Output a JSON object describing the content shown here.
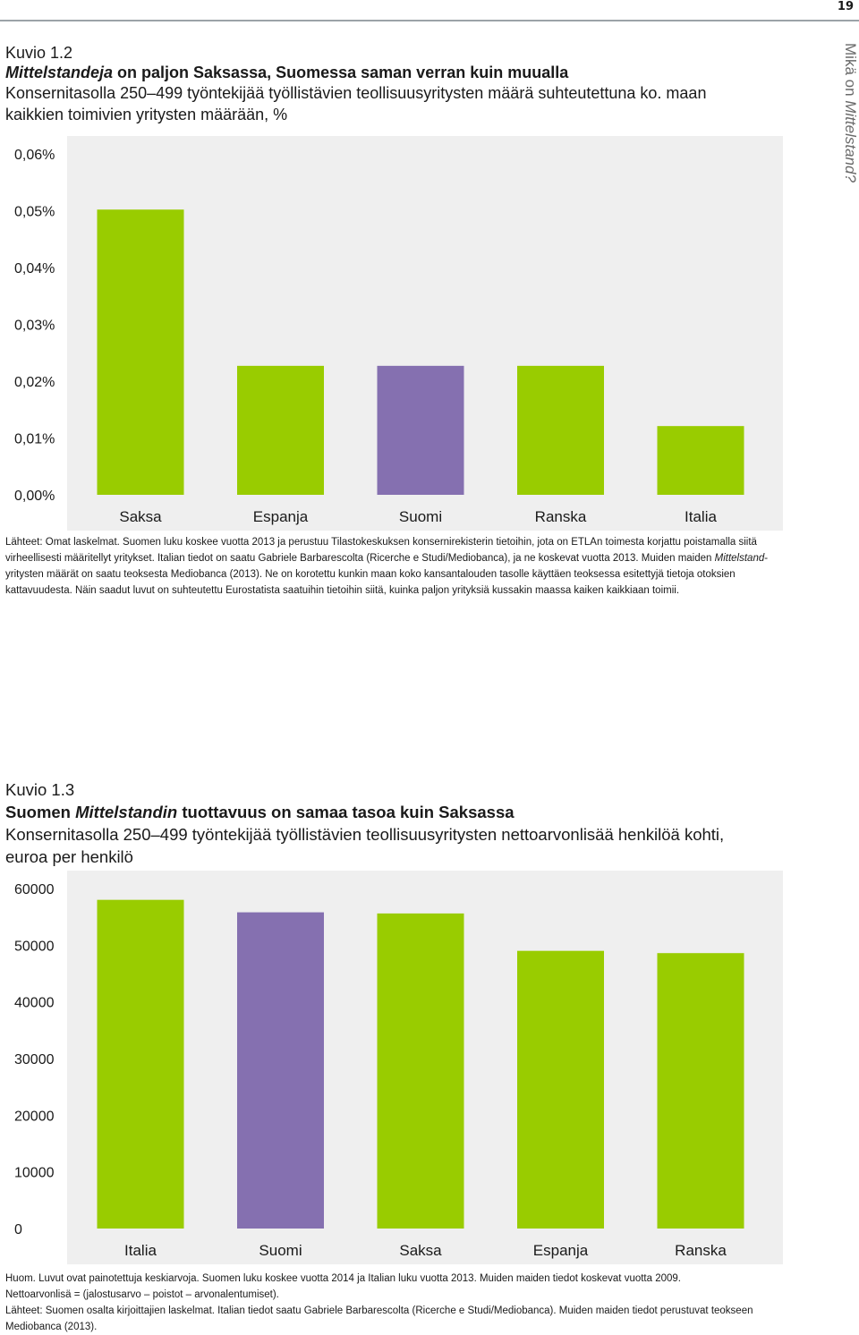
{
  "page_number": "19",
  "side_title_prefix": "Mikä on ",
  "side_title_italic": "Mittelstand?",
  "figure1": {
    "number": "Kuvio 1.2",
    "title_italic": "Mittelstandeja",
    "title_rest": " on paljon Saksassa, Suomessa saman verran kuin muualla",
    "subtitle": "Konsernitasolla 250–499 työntekijää työllistävien teollisuusyritysten määrä suhteutettuna ko. maan kaikkien toimivien yritysten määrään, %",
    "notes": [
      "Lähteet: Omat laskelmat. Suomen luku koskee vuotta 2013 ja perustuu Tilastokeskuksen konsernirekisterin tietoihin, jota on ETLAn toimesta korjattu poistamalla siitä virheellisesti määritellyt yritykset. Italian tiedot on saatu Gabriele Barbarescolta (Ricerche e Studi/Mediobanca), ja ne koskevat vuotta 2013. Muiden maiden ",
      "Mittelstand",
      "-yritysten määrät on saatu teoksesta Mediobanca (2013). Ne on korotettu kunkin maan koko kansantalouden tasolle käyttäen teoksessa esitettyjä tietoja otoksien kattavuudesta. Näin saadut luvut on suhteutettu Eurostatista saatuihin tietoihin siitä, kuinka paljon yrityksiä kussakin maassa kaiken kaikkiaan toimii."
    ]
  },
  "figure2": {
    "number": "Kuvio 1.3",
    "title_pre": "Suomen ",
    "title_italic": "Mittelstandin",
    "title_rest": " tuottavuus on samaa tasoa kuin Saksassa",
    "subtitle": "Konsernitasolla 250–499 työntekijää työllistävien teollisuusyritysten nettoarvonlisää henkilöä kohti, euroa per henkilö",
    "notes": [
      "Huom. Luvut ovat painotettuja keskiarvoja. Suomen luku koskee vuotta 2014 ja Italian luku vuotta 2013. Muiden maiden tiedot koskevat vuotta 2009.",
      "Nettoarvonlisä = (jalostusarvo – poistot – arvonalentumiset).",
      "Lähteet: Suomen osalta kirjoittajien laskelmat. Italian tiedot saatu Gabriele Barbarescolta (Ricerche e Studi/Mediobanca). Muiden maiden tiedot perustuvat teokseen Mediobanca (2013)."
    ]
  },
  "chart_data": [
    {
      "type": "bar",
      "categories": [
        "Saksa",
        "Espanja",
        "Suomi",
        "Ranska",
        "Italia"
      ],
      "values": [
        0.0502,
        0.0227,
        0.0227,
        0.0227,
        0.0121
      ],
      "yticks": [
        "0,00%",
        "0,01%",
        "0,02%",
        "0,03%",
        "0,04%",
        "0,05%",
        "0,06%"
      ],
      "ylim": [
        0,
        0.06
      ],
      "bar_colors": [
        "#99cc00",
        "#99cc00",
        "#8570b0",
        "#99cc00",
        "#99cc00"
      ],
      "background": "#efefef",
      "grid": false
    },
    {
      "type": "bar",
      "categories": [
        "Italia",
        "Suomi",
        "Saksa",
        "Espanja",
        "Ranska"
      ],
      "values": [
        58000,
        55800,
        55600,
        49000,
        48600
      ],
      "yticks": [
        "0",
        "10000",
        "20000",
        "30000",
        "40000",
        "50000",
        "60000"
      ],
      "ylim": [
        0,
        60000
      ],
      "bar_colors": [
        "#99cc00",
        "#8570b0",
        "#99cc00",
        "#99cc00",
        "#99cc00"
      ],
      "background": "#efefef",
      "grid": false
    }
  ]
}
